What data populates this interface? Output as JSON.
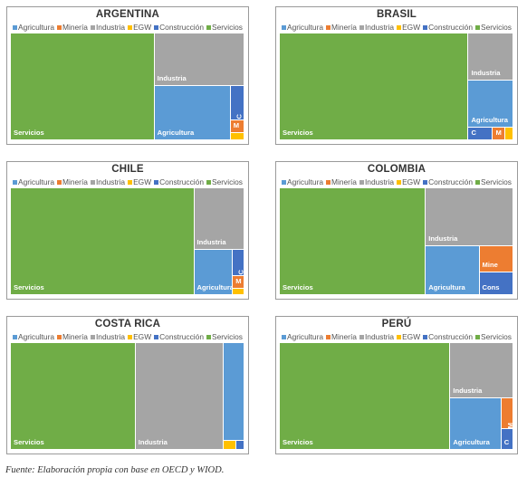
{
  "legend": [
    {
      "name": "Agricultura",
      "color": "#5b9bd5"
    },
    {
      "name": "Minería",
      "color": "#ed7d31"
    },
    {
      "name": "Industria",
      "color": "#a5a5a5"
    },
    {
      "name": "EGW",
      "color": "#ffc000"
    },
    {
      "name": "Construcción",
      "color": "#4472c4"
    },
    {
      "name": "Servicios",
      "color": "#70ad47"
    }
  ],
  "chart_data": [
    {
      "type": "treemap",
      "title": "ARGENTINA",
      "tiles": [
        {
          "category": "Servicios",
          "value": 61.5,
          "label": "Servicios"
        },
        {
          "category": "Industria",
          "value": 19.0,
          "label": "Industria"
        },
        {
          "category": "Agricultura",
          "value": 16.5,
          "label": "Agricultura"
        },
        {
          "category": "Construcción",
          "value": 1.9,
          "label": "C"
        },
        {
          "category": "Minería",
          "value": 0.7,
          "label": "M"
        },
        {
          "category": "EGW",
          "value": 0.4,
          "label": ""
        }
      ]
    },
    {
      "type": "treemap",
      "title": "BRASIL",
      "tiles": [
        {
          "category": "Servicios",
          "value": 80.8,
          "label": "Servicios"
        },
        {
          "category": "Industria",
          "value": 8.5,
          "label": "Industria"
        },
        {
          "category": "Agricultura",
          "value": 8.5,
          "label": "Agricultura"
        },
        {
          "category": "Construcción",
          "value": 1.2,
          "label": "C"
        },
        {
          "category": "Minería",
          "value": 0.6,
          "label": "M"
        },
        {
          "category": "EGW",
          "value": 0.4,
          "label": ""
        }
      ]
    },
    {
      "type": "treemap",
      "title": "CHILE",
      "tiles": [
        {
          "category": "Servicios",
          "value": 78.5,
          "label": "Servicios"
        },
        {
          "category": "Industria",
          "value": 12.4,
          "label": "Industria"
        },
        {
          "category": "Agricultura",
          "value": 7.0,
          "label": "Agricultura"
        },
        {
          "category": "Construcción",
          "value": 1.2,
          "label": "C"
        },
        {
          "category": "Minería",
          "value": 0.6,
          "label": "M"
        },
        {
          "category": "EGW",
          "value": 0.3,
          "label": ""
        }
      ]
    },
    {
      "type": "treemap",
      "title": "COLOMBIA",
      "tiles": [
        {
          "category": "Servicios",
          "value": 62.5,
          "label": "Servicios"
        },
        {
          "category": "Industria",
          "value": 20.2,
          "label": "Industria"
        },
        {
          "category": "Agricultura",
          "value": 10.6,
          "label": "Agricultura"
        },
        {
          "category": "Minería",
          "value": 3.6,
          "label": "Mine"
        },
        {
          "category": "Construcción",
          "value": 3.1,
          "label": "Cons"
        }
      ]
    },
    {
      "type": "treemap",
      "title": "COSTA RICA",
      "tiles": [
        {
          "category": "Servicios",
          "value": 53.4,
          "label": "Servicios"
        },
        {
          "category": "Industria",
          "value": 37.6,
          "label": "Industria"
        },
        {
          "category": "Agricultura",
          "value": 8.2,
          "label": "Agricultura"
        },
        {
          "category": "EGW",
          "value": 0.5,
          "label": ""
        },
        {
          "category": "Construcción",
          "value": 0.3,
          "label": ""
        }
      ]
    },
    {
      "type": "treemap",
      "title": "PERÚ",
      "tiles": [
        {
          "category": "Servicios",
          "value": 73.0,
          "label": "Servicios"
        },
        {
          "category": "Industria",
          "value": 13.9,
          "label": "Industria"
        },
        {
          "category": "Agricultura",
          "value": 10.6,
          "label": "Agricultura"
        },
        {
          "category": "Minería",
          "value": 1.5,
          "label": "M"
        },
        {
          "category": "Construcción",
          "value": 1.0,
          "label": "C"
        }
      ]
    }
  ],
  "footnote": "Fuente: Elaboración propia con base en OECD y WIOD."
}
